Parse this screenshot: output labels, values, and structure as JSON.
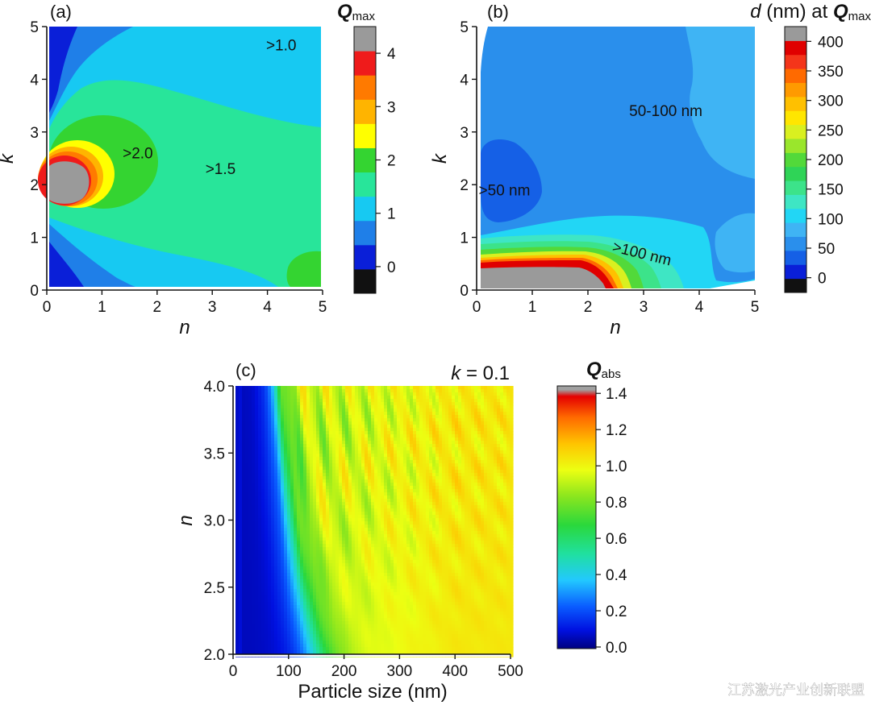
{
  "watermark": "江苏激光产业创新联盟",
  "chart_data": [
    {
      "panel": "(a)",
      "type": "heatmap",
      "xlabel": "n",
      "ylabel": "k",
      "xlim": [
        0,
        5
      ],
      "ylim": [
        0,
        5
      ],
      "xticks": [
        "0",
        "1",
        "2",
        "3",
        "4",
        "5"
      ],
      "yticks": [
        "0",
        "1",
        "2",
        "3",
        "4",
        "5"
      ],
      "colorbar": {
        "title_main": "Q",
        "title_sub": "max",
        "ticks": [
          "0",
          "1",
          "2",
          "3",
          "4"
        ],
        "levels": [
          -0.5,
          0,
          0.5,
          1,
          1.5,
          2,
          2.5,
          3,
          3.5,
          4,
          4.5
        ],
        "colors": [
          "#111111",
          "#0a1fd8",
          "#1f7fe8",
          "#17c9f2",
          "#28e59a",
          "#34d431",
          "#ffff00",
          "#ffb400",
          "#ff7a00",
          "#ef1b1b",
          "#9a9a9a"
        ]
      },
      "annotations": [
        {
          "text": ">1.0",
          "x": 4.25,
          "y": 4.55
        },
        {
          "text": ">2.0",
          "x": 1.65,
          "y": 2.5
        },
        {
          "text": ">1.5",
          "x": 3.15,
          "y": 2.2
        }
      ],
      "regions_max_value": {
        "peak_n": 0.35,
        "peak_k": 2.05,
        "peak_Q": 4.3
      }
    },
    {
      "panel": "(b)",
      "type": "heatmap",
      "xlabel": "n",
      "ylabel": "k",
      "xlim": [
        0,
        5
      ],
      "ylim": [
        0,
        5
      ],
      "xticks": [
        "0",
        "1",
        "2",
        "3",
        "4",
        "5"
      ],
      "yticks": [
        "0",
        "1",
        "2",
        "3",
        "4",
        "5"
      ],
      "colorbar": {
        "title_italic": "d",
        "title_mid": " (nm) at ",
        "title_main": "Q",
        "title_sub": "max",
        "ticks": [
          "0",
          "50",
          "100",
          "150",
          "200",
          "250",
          "300",
          "350",
          "400"
        ],
        "levels": [
          -25,
          0,
          25,
          50,
          75,
          100,
          125,
          150,
          175,
          200,
          225,
          250,
          275,
          300,
          325,
          350,
          375,
          400,
          425
        ],
        "colors": [
          "#111111",
          "#0a1fd8",
          "#1560e6",
          "#2a8fec",
          "#3fb4f4",
          "#22d6f5",
          "#3ee6c4",
          "#3ce38a",
          "#2fd457",
          "#52d93a",
          "#9ae62c",
          "#d9f020",
          "#ffe600",
          "#ffc000",
          "#ff9a00",
          "#ff6a00",
          "#f4351a",
          "#e00000",
          "#9a9a9a"
        ]
      },
      "annotations": [
        {
          "text": "50-100 nm",
          "x": 3.4,
          "y": 3.3
        },
        {
          "text": ">50 nm",
          "x": 0.5,
          "y": 1.8
        },
        {
          "text": ">100 nm",
          "x": 2.95,
          "y": 0.6
        }
      ]
    },
    {
      "panel": "(c)",
      "type": "heatmap",
      "xlabel": "Particle size (nm)",
      "ylabel": "n",
      "inset_label": "k = 0.1",
      "inset_k": "k",
      "inset_rest": " = 0.1",
      "xlim": [
        0,
        500
      ],
      "ylim": [
        2.0,
        4.0
      ],
      "xticks": [
        "0",
        "100",
        "200",
        "300",
        "400",
        "500"
      ],
      "yticks": [
        "2.0",
        "2.5",
        "3.0",
        "3.5",
        "4.0"
      ],
      "colorbar": {
        "title_main": "Q",
        "title_sub": "abs",
        "ticks": [
          "0.0",
          "0.2",
          "0.4",
          "0.6",
          "0.8",
          "1.0",
          "1.2",
          "1.4"
        ],
        "range": [
          0,
          1.45
        ]
      }
    }
  ]
}
